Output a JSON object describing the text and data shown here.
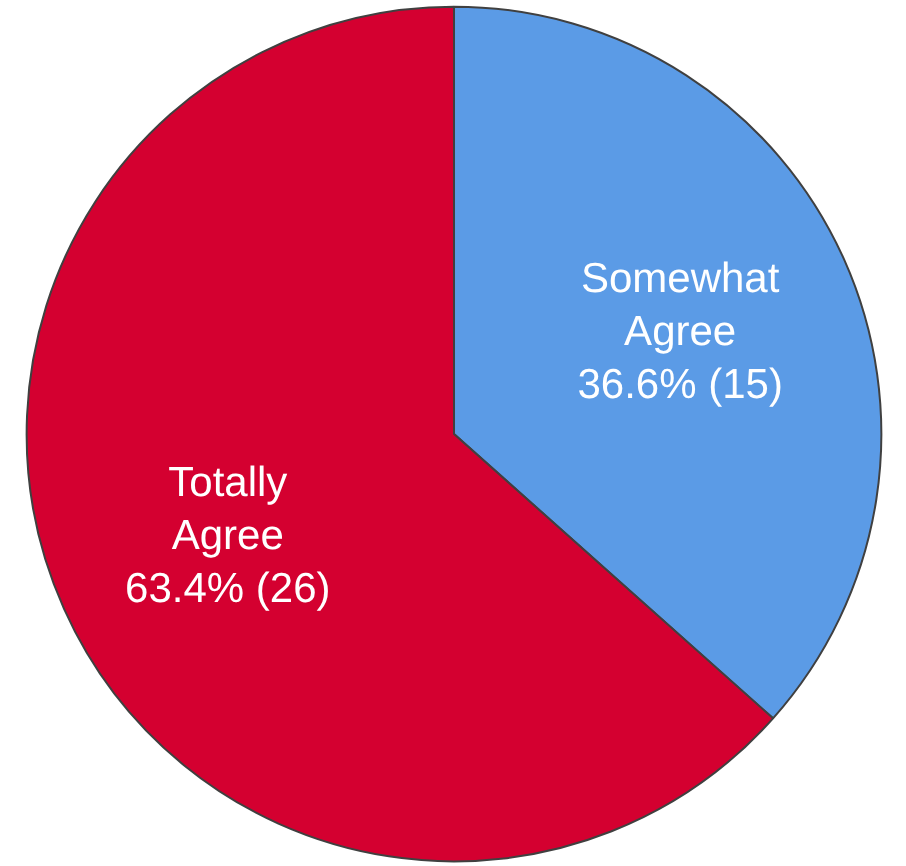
{
  "chart_data": {
    "type": "pie",
    "categories": [
      "Somewhat Agree",
      "Totally Agree"
    ],
    "values": [
      15,
      26
    ],
    "colors": [
      "#5b9be6",
      "#d40030"
    ],
    "value_labels": [
      "36.6% (15)",
      "63.4% (26)"
    ]
  }
}
